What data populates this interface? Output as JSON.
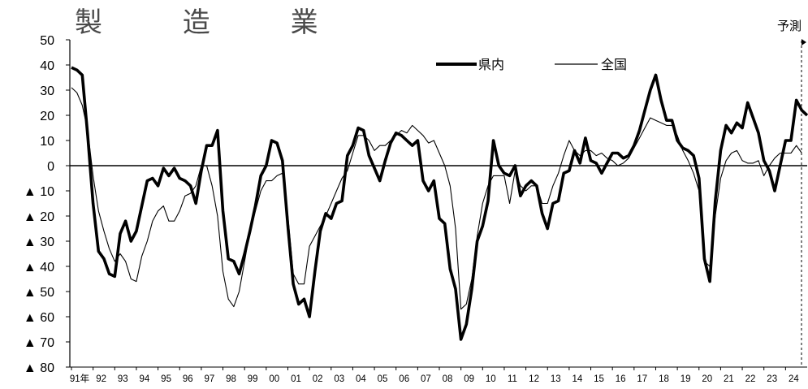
{
  "chart_data": {
    "type": "line",
    "title": "製 造 業",
    "forecast_label": "予測",
    "ylim": [
      -80,
      50
    ],
    "y_ticks": [
      50,
      40,
      30,
      20,
      10,
      0,
      -10,
      -20,
      -30,
      -40,
      -50,
      -60,
      -70,
      -80
    ],
    "y_tick_labels": [
      "50",
      "40",
      "30",
      "20",
      "10",
      "0",
      "▲ 10",
      "▲ 20",
      "▲ 30",
      "▲ 40",
      "▲ 50",
      "▲ 60",
      "▲ 70",
      "▲ 80"
    ],
    "x_tick_labels": [
      "91年",
      "92",
      "93",
      "94",
      "95",
      "96",
      "97",
      "98",
      "99",
      "00",
      "01",
      "02",
      "03",
      "04",
      "05",
      "06",
      "07",
      "08",
      "09",
      "10",
      "11",
      "12",
      "13",
      "14",
      "15",
      "16",
      "17",
      "18",
      "19",
      "20",
      "21",
      "22",
      "23",
      "24"
    ],
    "legend_position": "top-center",
    "grid": false,
    "series": [
      {
        "name": "県内",
        "color": "#000000",
        "values": [
          39,
          38,
          36,
          12,
          -15,
          -34,
          -37,
          -43,
          -44,
          -27,
          -22,
          -30,
          -26,
          -16,
          -6,
          -5,
          -8,
          -1,
          -4,
          -1,
          -5,
          -6,
          -8,
          -15,
          -2,
          8,
          8,
          14,
          -18,
          -37,
          -38,
          -43,
          -35,
          -26,
          -16,
          -4,
          0,
          10,
          9,
          2,
          -24,
          -47,
          -55,
          -53,
          -60,
          -42,
          -26,
          -19,
          -21,
          -15,
          -14,
          4,
          8,
          15,
          14,
          4,
          -1,
          -6,
          2,
          9,
          13,
          12,
          10,
          8,
          10,
          -6,
          -10,
          -6,
          -21,
          -23,
          -41,
          -49,
          -69,
          -63,
          -49,
          -30,
          -24,
          -14,
          10,
          0,
          -3,
          -4,
          0,
          -12,
          -8,
          -6,
          -8,
          -19,
          -25,
          -15,
          -14,
          -3,
          -2,
          6,
          1,
          11,
          2,
          1,
          -3,
          1,
          5,
          5,
          3,
          4,
          8,
          14,
          22,
          30,
          36,
          26,
          18,
          18,
          10,
          7,
          6,
          4,
          -5,
          -37,
          -46,
          -14,
          6,
          16,
          13,
          17,
          15,
          25,
          19,
          13,
          2,
          -2,
          -10,
          0,
          10,
          10,
          26,
          22,
          20
        ]
      },
      {
        "name": "全国",
        "color": "#000000",
        "values": [
          31,
          29,
          24,
          14,
          -4,
          -18,
          -26,
          -33,
          -38,
          -35,
          -38,
          -45,
          -46,
          -36,
          -30,
          -22,
          -18,
          -16,
          -22,
          -22,
          -18,
          -12,
          -11,
          -8,
          0,
          0,
          -8,
          -20,
          -42,
          -53,
          -56,
          -50,
          -38,
          -26,
          -18,
          -10,
          -6,
          -6,
          -4,
          -3,
          -20,
          -43,
          -47,
          -47,
          -32,
          -28,
          -24,
          -20,
          -15,
          -10,
          -5,
          -2,
          5,
          12,
          12,
          10,
          6,
          8,
          8,
          10,
          12,
          14,
          13,
          16,
          14,
          12,
          9,
          10,
          5,
          0,
          -8,
          -25,
          -57,
          -55,
          -45,
          -28,
          -15,
          -8,
          -4,
          -4,
          -4,
          -15,
          -2,
          -8,
          -10,
          -8,
          -8,
          -15,
          -15,
          -8,
          -3,
          4,
          10,
          6,
          4,
          6,
          6,
          4,
          5,
          3,
          2,
          0,
          1,
          3,
          7,
          11,
          15,
          19,
          18,
          17,
          16,
          16,
          12,
          6,
          2,
          -3,
          -10,
          -38,
          -40,
          -20,
          -5,
          2,
          5,
          6,
          2,
          1,
          1,
          2,
          -4,
          0,
          3,
          5,
          5,
          5,
          8,
          5
        ]
      }
    ]
  }
}
